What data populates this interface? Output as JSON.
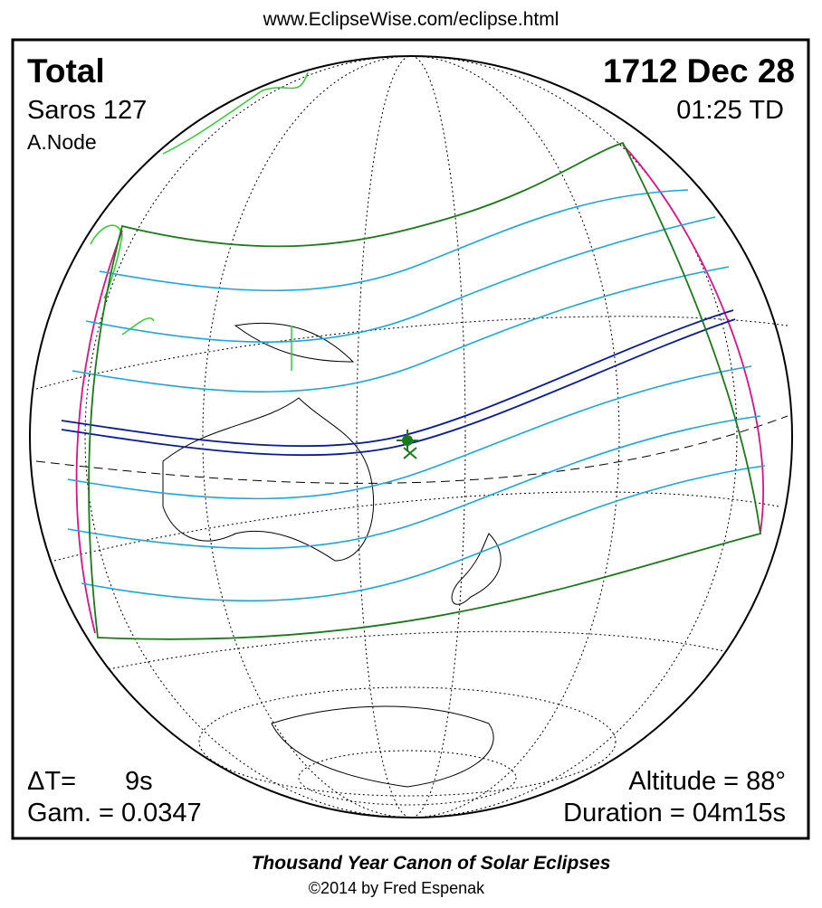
{
  "header": {
    "url": "www.EclipseWise.com/eclipse.html"
  },
  "map": {
    "eclipse_type": "Total",
    "date": "1712 Dec 28",
    "saros": "Saros 127",
    "time": "01:25 TD",
    "node": "A.Node",
    "delta_t_label": "ΔT=",
    "delta_t": "9s",
    "altitude": "Altitude = 88°",
    "gamma": "Gam. = 0.0347",
    "duration": "Duration = 04m15s"
  },
  "footer": {
    "title": "Thousand Year Canon of Solar Eclipses",
    "copyright": "©2014 by Fred Espenak"
  }
}
